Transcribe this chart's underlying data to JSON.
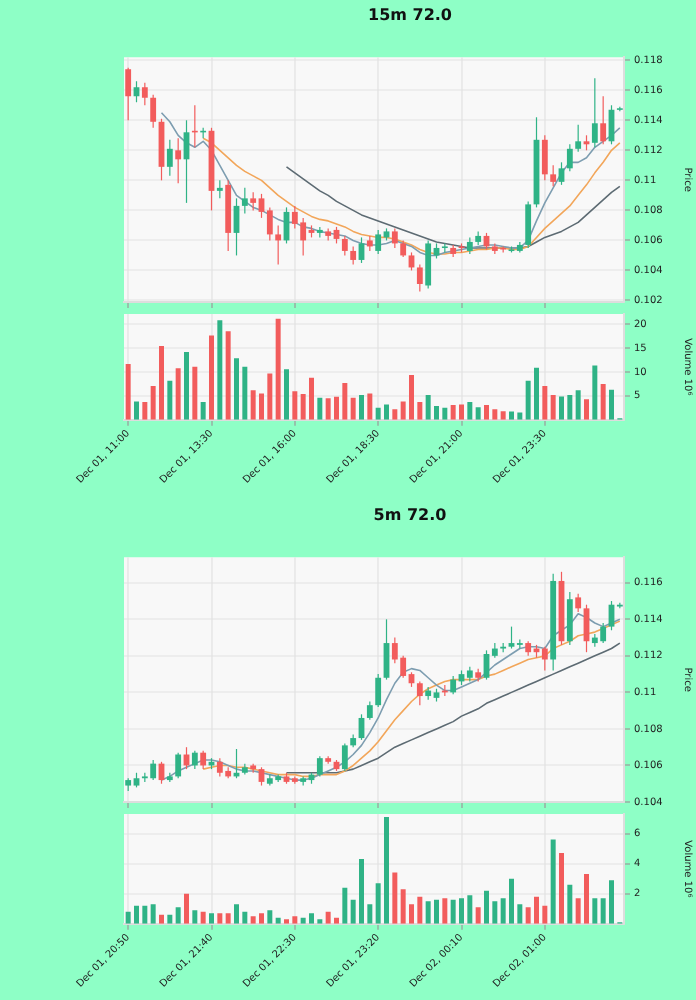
{
  "chart_data": [
    {
      "type": "candlestick",
      "title": "15m 72.0",
      "ylabel": "Price",
      "grid": true,
      "legend": false,
      "tick_labels": "y",
      "categories": [
        null,
        null,
        null,
        null,
        null,
        null,
        null,
        null,
        null,
        null,
        null,
        null,
        null,
        null,
        null,
        null,
        null,
        null,
        null,
        null,
        null,
        null,
        null,
        null,
        null,
        null,
        null,
        null,
        null,
        null,
        null,
        null,
        null,
        null,
        null,
        null,
        null,
        null,
        null,
        null,
        null,
        null,
        null,
        null,
        null,
        null,
        null,
        null,
        null,
        null,
        null,
        null,
        null,
        null,
        null,
        null,
        null,
        null,
        null,
        null
      ],
      "ylim": [
        0.1019,
        0.1182
      ],
      "yticks": [
        0.102,
        0.104,
        0.106,
        0.108,
        0.11,
        0.112,
        0.114,
        0.116,
        0.118
      ],
      "ohlc": [
        [
          0.1174,
          0.1175,
          0.114,
          0.1156
        ],
        [
          0.1156,
          0.1166,
          0.1152,
          0.1162
        ],
        [
          0.1162,
          0.1165,
          0.115,
          0.1155
        ],
        [
          0.1155,
          0.1157,
          0.1135,
          0.1139
        ],
        [
          0.1139,
          0.1141,
          0.11,
          0.1109
        ],
        [
          0.1109,
          0.1127,
          0.1103,
          0.1121
        ],
        [
          0.112,
          0.1128,
          0.1098,
          0.1114
        ],
        [
          0.1114,
          0.114,
          0.1085,
          0.1132
        ],
        [
          0.1133,
          0.115,
          0.1122,
          0.1132
        ],
        [
          0.1132,
          0.1135,
          0.1128,
          0.1133
        ],
        [
          0.1133,
          0.1135,
          0.108,
          0.1093
        ],
        [
          0.1093,
          0.11,
          0.1088,
          0.1095
        ],
        [
          0.1097,
          0.11,
          0.1053,
          0.1065
        ],
        [
          0.1065,
          0.1088,
          0.105,
          0.1083
        ],
        [
          0.1083,
          0.1095,
          0.1078,
          0.1088
        ],
        [
          0.1088,
          0.1092,
          0.108,
          0.1085
        ],
        [
          0.1088,
          0.1091,
          0.1075,
          0.1079
        ],
        [
          0.108,
          0.1082,
          0.106,
          0.1064
        ],
        [
          0.1064,
          0.107,
          0.1044,
          0.106
        ],
        [
          0.106,
          0.1082,
          0.1058,
          0.1079
        ],
        [
          0.1079,
          0.1083,
          0.1068,
          0.1071
        ],
        [
          0.1072,
          0.1075,
          0.105,
          0.106
        ],
        [
          0.1067,
          0.107,
          0.1062,
          0.1065
        ],
        [
          0.1065,
          0.1069,
          0.1062,
          0.1067
        ],
        [
          0.1066,
          0.1068,
          0.106,
          0.1063
        ],
        [
          0.1067,
          0.1069,
          0.1058,
          0.1061
        ],
        [
          0.1061,
          0.1063,
          0.105,
          0.1053
        ],
        [
          0.1053,
          0.1056,
          0.1044,
          0.1047
        ],
        [
          0.1047,
          0.1062,
          0.1045,
          0.1058
        ],
        [
          0.106,
          0.1063,
          0.1053,
          0.1056
        ],
        [
          0.1053,
          0.1067,
          0.1051,
          0.1064
        ],
        [
          0.1062,
          0.1068,
          0.106,
          0.1066
        ],
        [
          0.1066,
          0.1068,
          0.1055,
          0.1058
        ],
        [
          0.1058,
          0.106,
          0.1049,
          0.105
        ],
        [
          0.105,
          0.1052,
          0.104,
          0.1042
        ],
        [
          0.1042,
          0.1044,
          0.1026,
          0.1031
        ],
        [
          0.103,
          0.106,
          0.1028,
          0.1058
        ],
        [
          0.105,
          0.1058,
          0.1048,
          0.1055
        ],
        [
          0.1055,
          0.1058,
          0.1052,
          0.1056
        ],
        [
          0.1055,
          0.1057,
          0.1049,
          0.1051
        ],
        [
          0.1056,
          0.1058,
          0.1052,
          0.1055
        ],
        [
          0.1053,
          0.1062,
          0.1051,
          0.1059
        ],
        [
          0.1059,
          0.1066,
          0.1057,
          0.1063
        ],
        [
          0.1063,
          0.1065,
          0.1054,
          0.1056
        ],
        [
          0.1056,
          0.1058,
          0.1051,
          0.1053
        ],
        [
          0.1055,
          0.1056,
          0.1052,
          0.1054
        ],
        [
          0.1053,
          0.1056,
          0.1052,
          0.1054
        ],
        [
          0.1053,
          0.1059,
          0.1052,
          0.1057
        ],
        [
          0.1057,
          0.1086,
          0.1055,
          0.1084
        ],
        [
          0.1084,
          0.1142,
          0.1082,
          0.1127
        ],
        [
          0.1127,
          0.113,
          0.11,
          0.1104
        ],
        [
          0.1104,
          0.111,
          0.1096,
          0.1099
        ],
        [
          0.1099,
          0.1112,
          0.1097,
          0.1108
        ],
        [
          0.1108,
          0.1124,
          0.1106,
          0.1121
        ],
        [
          0.1121,
          0.1137,
          0.1119,
          0.1126
        ],
        [
          0.1126,
          0.113,
          0.112,
          0.1124
        ],
        [
          0.1125,
          0.1168,
          0.1122,
          0.1138
        ],
        [
          0.1138,
          0.1156,
          0.1124,
          0.1126
        ],
        [
          0.1126,
          0.115,
          0.1124,
          0.1147
        ],
        [
          0.1147,
          0.1149,
          0.1146,
          0.1148
        ]
      ],
      "colors": [
        "#f25c5c",
        "#2fb386",
        "#f25c5c",
        "#f25c5c",
        "#f25c5c",
        "#2fb386",
        "#f25c5c",
        "#2fb386",
        "#f25c5c",
        "#2fb386",
        "#f25c5c",
        "#2fb386",
        "#f25c5c",
        "#2fb386",
        "#2fb386",
        "#f25c5c",
        "#f25c5c",
        "#f25c5c",
        "#f25c5c",
        "#2fb386",
        "#f25c5c",
        "#f25c5c",
        "#f25c5c",
        "#2fb386",
        "#f25c5c",
        "#f25c5c",
        "#f25c5c",
        "#f25c5c",
        "#2fb386",
        "#f25c5c",
        "#2fb386",
        "#2fb386",
        "#f25c5c",
        "#f25c5c",
        "#f25c5c",
        "#f25c5c",
        "#2fb386",
        "#2fb386",
        "#2fb386",
        "#f25c5c",
        "#f25c5c",
        "#2fb386",
        "#2fb386",
        "#f25c5c",
        "#f25c5c",
        "#f25c5c",
        "#2fb386",
        "#2fb386",
        "#2fb386",
        "#2fb386",
        "#f25c5c",
        "#f25c5c",
        "#2fb386",
        "#2fb386",
        "#2fb386",
        "#f25c5c",
        "#2fb386",
        "#f25c5c",
        "#2fb386",
        "#2fb386"
      ],
      "series": [
        {
          "type": "line",
          "color": "#7d9db0",
          "values": [
            null,
            null,
            null,
            null,
            0.1145,
            0.1139,
            0.113,
            0.1125,
            0.1122,
            0.1126,
            0.112,
            0.111,
            0.11,
            0.109,
            0.1086,
            0.1082,
            0.108,
            0.1077,
            0.1074,
            0.1072,
            0.1072,
            0.1069,
            0.1068,
            0.1066,
            0.1065,
            0.1064,
            0.1063,
            0.106,
            0.1058,
            0.1057,
            0.1057,
            0.1058,
            0.106,
            0.1058,
            0.1056,
            0.1052,
            0.105,
            0.105,
            0.1052,
            0.1053,
            0.1054,
            0.1055,
            0.1056,
            0.1057,
            0.1057,
            0.1056,
            0.1055,
            0.1055,
            0.106,
            0.1073,
            0.1085,
            0.1095,
            0.1105,
            0.1112,
            0.1112,
            0.1115,
            0.1122,
            0.1126,
            0.113,
            0.1135
          ]
        },
        {
          "type": "line",
          "color": "#f2a65a",
          "values": [
            null,
            null,
            null,
            null,
            null,
            null,
            null,
            null,
            null,
            0.1128,
            0.1125,
            0.112,
            0.1115,
            0.111,
            0.1106,
            0.1103,
            0.11,
            0.1095,
            0.109,
            0.1086,
            0.1082,
            0.1079,
            0.1076,
            0.1074,
            0.1073,
            0.1071,
            0.1069,
            0.1066,
            0.1064,
            0.1063,
            0.1062,
            0.1062,
            0.1061,
            0.1059,
            0.1057,
            0.1054,
            0.1052,
            0.1051,
            0.1051,
            0.1052,
            0.1052,
            0.1053,
            0.1054,
            0.1054,
            0.1055,
            0.1055,
            0.1054,
            0.1054,
            0.1056,
            0.1062,
            0.1068,
            0.1073,
            0.1078,
            0.1083,
            0.109,
            0.1097,
            0.1105,
            0.1112,
            0.112,
            0.1125
          ]
        },
        {
          "type": "line",
          "color": "#5d6b73",
          "values": [
            null,
            null,
            null,
            null,
            null,
            null,
            null,
            null,
            null,
            null,
            null,
            null,
            null,
            null,
            null,
            null,
            null,
            null,
            null,
            0.1109,
            0.1105,
            0.1101,
            0.1097,
            0.1093,
            0.109,
            0.1086,
            0.1083,
            0.108,
            0.1077,
            0.1075,
            0.1073,
            0.1071,
            0.1069,
            0.1067,
            0.1065,
            0.1063,
            0.1061,
            0.1059,
            0.1058,
            0.1057,
            0.1056,
            0.1055,
            0.1055,
            0.1055,
            0.1055,
            0.1055,
            0.1055,
            0.1055,
            0.1056,
            0.1059,
            0.1062,
            0.1064,
            0.1066,
            0.1069,
            0.1072,
            0.1077,
            0.1082,
            0.1087,
            0.1092,
            0.1096
          ]
        }
      ]
    },
    {
      "type": "bar",
      "ylabel": "Volume 10⁶",
      "grid": true,
      "legend": false,
      "categories": [
        "Dec 01, 11:00",
        null,
        null,
        null,
        null,
        null,
        null,
        null,
        null,
        null,
        "Dec 01, 13:30",
        null,
        null,
        null,
        null,
        null,
        null,
        null,
        null,
        null,
        "Dec 01, 16:00",
        null,
        null,
        null,
        null,
        null,
        null,
        null,
        null,
        null,
        "Dec 01, 18:30",
        null,
        null,
        null,
        null,
        null,
        null,
        null,
        null,
        null,
        "Dec 01, 21:00",
        null,
        null,
        null,
        null,
        null,
        null,
        null,
        null,
        null,
        "Dec 01, 23:30",
        null,
        null,
        null,
        null,
        null,
        null,
        null,
        null,
        null
      ],
      "ylim": [
        0,
        22.2
      ],
      "yticks": [
        5,
        10,
        15,
        20
      ],
      "values": [
        11.7,
        3.8,
        3.7,
        7.1,
        15.5,
        8.2,
        10.8,
        14.2,
        11.1,
        3.7,
        17.7,
        20.9,
        18.6,
        12.9,
        11.1,
        6.2,
        5.5,
        9.7,
        21.2,
        10.6,
        6.0,
        5.4,
        8.8,
        4.6,
        4.5,
        4.8,
        7.7,
        4.6,
        5.2,
        5.5,
        2.5,
        3.2,
        2.2,
        3.8,
        9.4,
        3.7,
        5.2,
        2.9,
        2.5,
        3.1,
        3.2,
        3.7,
        2.6,
        3.1,
        2.2,
        1.8,
        1.7,
        1.5,
        8.2,
        10.9,
        7.1,
        5.2,
        4.9,
        5.2,
        6.2,
        4.3,
        11.4,
        7.5,
        6.3,
        0.3
      ],
      "colors": [
        "#f25c5c",
        "#2fb386",
        "#f25c5c",
        "#f25c5c",
        "#f25c5c",
        "#2fb386",
        "#f25c5c",
        "#2fb386",
        "#f25c5c",
        "#2fb386",
        "#f25c5c",
        "#2fb386",
        "#f25c5c",
        "#2fb386",
        "#2fb386",
        "#f25c5c",
        "#f25c5c",
        "#f25c5c",
        "#f25c5c",
        "#2fb386",
        "#f25c5c",
        "#f25c5c",
        "#f25c5c",
        "#2fb386",
        "#f25c5c",
        "#f25c5c",
        "#f25c5c",
        "#f25c5c",
        "#2fb386",
        "#f25c5c",
        "#2fb386",
        "#2fb386",
        "#f25c5c",
        "#f25c5c",
        "#f25c5c",
        "#f25c5c",
        "#2fb386",
        "#2fb386",
        "#2fb386",
        "#f25c5c",
        "#f25c5c",
        "#2fb386",
        "#2fb386",
        "#f25c5c",
        "#f25c5c",
        "#f25c5c",
        "#2fb386",
        "#2fb386",
        "#2fb386",
        "#2fb386",
        "#f25c5c",
        "#f25c5c",
        "#2fb386",
        "#2fb386",
        "#2fb386",
        "#f25c5c",
        "#2fb386",
        "#f25c5c",
        "#2fb386",
        "#2fb386"
      ]
    },
    {
      "type": "candlestick",
      "title": "5m 72.0",
      "ylabel": "Price",
      "grid": true,
      "legend": false,
      "tick_labels": "y",
      "categories": [
        null,
        null,
        null,
        null,
        null,
        null,
        null,
        null,
        null,
        null,
        null,
        null,
        null,
        null,
        null,
        null,
        null,
        null,
        null,
        null,
        null,
        null,
        null,
        null,
        null,
        null,
        null,
        null,
        null,
        null,
        null,
        null,
        null,
        null,
        null,
        null,
        null,
        null,
        null,
        null,
        null,
        null,
        null,
        null,
        null,
        null,
        null,
        null,
        null,
        null,
        null,
        null,
        null,
        null,
        null,
        null,
        null,
        null,
        null,
        null
      ],
      "ylim": [
        0.104,
        0.1174
      ],
      "yticks": [
        0.104,
        0.106,
        0.108,
        0.11,
        0.112,
        0.114,
        0.116
      ],
      "ohlc": [
        [
          0.1049,
          0.1053,
          0.1046,
          0.1052
        ],
        [
          0.1049,
          0.1056,
          0.1048,
          0.1053
        ],
        [
          0.1053,
          0.1056,
          0.1051,
          0.1054
        ],
        [
          0.1053,
          0.1063,
          0.1052,
          0.1061
        ],
        [
          0.1061,
          0.1062,
          0.105,
          0.1052
        ],
        [
          0.1052,
          0.1056,
          0.1051,
          0.1054
        ],
        [
          0.1054,
          0.1067,
          0.1053,
          0.1066
        ],
        [
          0.1066,
          0.107,
          0.1058,
          0.106
        ],
        [
          0.106,
          0.1068,
          0.1058,
          0.1067
        ],
        [
          0.1067,
          0.1068,
          0.1058,
          0.106
        ],
        [
          0.106,
          0.1064,
          0.1058,
          0.1062
        ],
        [
          0.1062,
          0.1064,
          0.1054,
          0.1056
        ],
        [
          0.1057,
          0.1059,
          0.1053,
          0.1054
        ],
        [
          0.1054,
          0.1069,
          0.1053,
          0.1056
        ],
        [
          0.1056,
          0.1061,
          0.1055,
          0.1059
        ],
        [
          0.106,
          0.1061,
          0.1056,
          0.1058
        ],
        [
          0.1058,
          0.1059,
          0.1049,
          0.1051
        ],
        [
          0.105,
          0.1055,
          0.1049,
          0.1053
        ],
        [
          0.1052,
          0.1055,
          0.1051,
          0.1054
        ],
        [
          0.1054,
          0.1056,
          0.105,
          0.1051
        ],
        [
          0.1053,
          0.1054,
          0.105,
          0.1051
        ],
        [
          0.1051,
          0.1054,
          0.1049,
          0.1053
        ],
        [
          0.1052,
          0.1056,
          0.105,
          0.1055
        ],
        [
          0.1055,
          0.1065,
          0.1054,
          0.1064
        ],
        [
          0.1064,
          0.1065,
          0.1061,
          0.1062
        ],
        [
          0.1062,
          0.1063,
          0.1057,
          0.1058
        ],
        [
          0.1058,
          0.1072,
          0.1057,
          0.1071
        ],
        [
          0.1071,
          0.1077,
          0.107,
          0.1075
        ],
        [
          0.1075,
          0.1088,
          0.1074,
          0.1086
        ],
        [
          0.1086,
          0.1095,
          0.1085,
          0.1093
        ],
        [
          0.1093,
          0.111,
          0.1092,
          0.1108
        ],
        [
          0.1108,
          0.114,
          0.1107,
          0.1127
        ],
        [
          0.1127,
          0.113,
          0.1116,
          0.1118
        ],
        [
          0.1119,
          0.112,
          0.1108,
          0.1109
        ],
        [
          0.111,
          0.1111,
          0.1103,
          0.1105
        ],
        [
          0.1105,
          0.1106,
          0.1093,
          0.1098
        ],
        [
          0.1098,
          0.1103,
          0.1096,
          0.1101
        ],
        [
          0.1097,
          0.1102,
          0.1095,
          0.11
        ],
        [
          0.1101,
          0.1104,
          0.1098,
          0.11
        ],
        [
          0.11,
          0.1109,
          0.1099,
          0.1107
        ],
        [
          0.1106,
          0.1112,
          0.1104,
          0.111
        ],
        [
          0.1108,
          0.1114,
          0.1106,
          0.1112
        ],
        [
          0.1111,
          0.1113,
          0.1106,
          0.1108
        ],
        [
          0.1108,
          0.1123,
          0.1107,
          0.1121
        ],
        [
          0.112,
          0.1127,
          0.1119,
          0.1124
        ],
        [
          0.1124,
          0.1127,
          0.1122,
          0.1125
        ],
        [
          0.1125,
          0.1136,
          0.1124,
          0.1127
        ],
        [
          0.1126,
          0.1129,
          0.1124,
          0.1127
        ],
        [
          0.1127,
          0.1128,
          0.112,
          0.1122
        ],
        [
          0.1124,
          0.1126,
          0.1119,
          0.1122
        ],
        [
          0.1124,
          0.1125,
          0.1112,
          0.1118
        ],
        [
          0.1118,
          0.1165,
          0.1112,
          0.1161
        ],
        [
          0.1161,
          0.1166,
          0.1126,
          0.1128
        ],
        [
          0.1128,
          0.1155,
          0.1126,
          0.1151
        ],
        [
          0.1152,
          0.1154,
          0.1144,
          0.1146
        ],
        [
          0.1146,
          0.1148,
          0.1122,
          0.1128
        ],
        [
          0.1127,
          0.1132,
          0.1125,
          0.113
        ],
        [
          0.1128,
          0.1138,
          0.1127,
          0.1136
        ],
        [
          0.1136,
          0.115,
          0.1134,
          0.1148
        ],
        [
          0.1147,
          0.1149,
          0.1146,
          0.1148
        ]
      ],
      "colors": [
        "#2fb386",
        "#2fb386",
        "#2fb386",
        "#2fb386",
        "#f25c5c",
        "#2fb386",
        "#2fb386",
        "#f25c5c",
        "#2fb386",
        "#f25c5c",
        "#2fb386",
        "#f25c5c",
        "#f25c5c",
        "#2fb386",
        "#2fb386",
        "#f25c5c",
        "#f25c5c",
        "#2fb386",
        "#2fb386",
        "#f25c5c",
        "#f25c5c",
        "#2fb386",
        "#2fb386",
        "#2fb386",
        "#f25c5c",
        "#f25c5c",
        "#2fb386",
        "#2fb386",
        "#2fb386",
        "#2fb386",
        "#2fb386",
        "#2fb386",
        "#f25c5c",
        "#f25c5c",
        "#f25c5c",
        "#f25c5c",
        "#2fb386",
        "#2fb386",
        "#f25c5c",
        "#2fb386",
        "#2fb386",
        "#2fb386",
        "#f25c5c",
        "#2fb386",
        "#2fb386",
        "#2fb386",
        "#2fb386",
        "#2fb386",
        "#f25c5c",
        "#f25c5c",
        "#f25c5c",
        "#2fb386",
        "#f25c5c",
        "#2fb386",
        "#f25c5c",
        "#f25c5c",
        "#2fb386",
        "#2fb386",
        "#2fb386",
        "#2fb386"
      ],
      "series": [
        {
          "type": "line",
          "color": "#7d9db0",
          "values": [
            null,
            null,
            null,
            null,
            0.1052,
            0.1054,
            0.1057,
            0.1059,
            0.1061,
            0.1063,
            0.1063,
            0.1062,
            0.106,
            0.1058,
            0.1057,
            0.1057,
            0.1056,
            0.1055,
            0.1054,
            0.1053,
            0.1052,
            0.1052,
            0.1053,
            0.1055,
            0.1057,
            0.1059,
            0.1062,
            0.1066,
            0.1071,
            0.1078,
            0.1086,
            0.1096,
            0.1105,
            0.1111,
            0.1113,
            0.1112,
            0.1108,
            0.1104,
            0.1101,
            0.1101,
            0.1103,
            0.1105,
            0.1107,
            0.1111,
            0.1115,
            0.1118,
            0.1121,
            0.1124,
            0.1125,
            0.1125,
            0.1124,
            0.1131,
            0.1134,
            0.1137,
            0.1143,
            0.1141,
            0.1138,
            0.1136,
            0.1138,
            0.114
          ]
        },
        {
          "type": "line",
          "color": "#f2a65a",
          "values": [
            null,
            null,
            null,
            null,
            null,
            null,
            null,
            null,
            null,
            0.1058,
            0.1059,
            0.106,
            0.106,
            0.1059,
            0.1059,
            0.1058,
            0.1057,
            0.1056,
            0.1055,
            0.1055,
            0.1055,
            0.1054,
            0.1054,
            0.1055,
            0.1055,
            0.1055,
            0.1057,
            0.106,
            0.1064,
            0.1068,
            0.1073,
            0.1079,
            0.1085,
            0.109,
            0.1095,
            0.1099,
            0.1102,
            0.1104,
            0.1106,
            0.1107,
            0.1107,
            0.1107,
            0.1107,
            0.1109,
            0.111,
            0.1112,
            0.1114,
            0.1116,
            0.1118,
            0.1119,
            0.112,
            0.1124,
            0.1126,
            0.1128,
            0.1131,
            0.1132,
            0.1133,
            0.1135,
            0.1137,
            0.1139
          ]
        },
        {
          "type": "line",
          "color": "#5d6b73",
          "values": [
            null,
            null,
            null,
            null,
            null,
            null,
            null,
            null,
            null,
            null,
            null,
            null,
            null,
            null,
            null,
            null,
            null,
            null,
            null,
            0.1056,
            0.1056,
            0.1056,
            0.1056,
            0.1056,
            0.1056,
            0.1056,
            0.1057,
            0.1058,
            0.106,
            0.1062,
            0.1064,
            0.1067,
            0.107,
            0.1072,
            0.1074,
            0.1076,
            0.1078,
            0.108,
            0.1082,
            0.1084,
            0.1087,
            0.1089,
            0.1091,
            0.1094,
            0.1096,
            0.1098,
            0.11,
            0.1102,
            0.1104,
            0.1106,
            0.1108,
            0.111,
            0.1112,
            0.1114,
            0.1116,
            0.1118,
            0.112,
            0.1122,
            0.1124,
            0.1127
          ]
        }
      ]
    },
    {
      "type": "bar",
      "ylabel": "Volume 10⁶",
      "grid": true,
      "legend": false,
      "categories": [
        "Dec 01, 20:50",
        null,
        null,
        null,
        null,
        null,
        null,
        null,
        null,
        null,
        "Dec 01, 21:40",
        null,
        null,
        null,
        null,
        null,
        null,
        null,
        null,
        null,
        "Dec 01, 22:30",
        null,
        null,
        null,
        null,
        null,
        null,
        null,
        null,
        null,
        "Dec 01, 23:20",
        null,
        null,
        null,
        null,
        null,
        null,
        null,
        null,
        null,
        "Dec 02, 00:10",
        null,
        null,
        null,
        null,
        null,
        null,
        null,
        null,
        null,
        "Dec 02, 01:00",
        null,
        null,
        null,
        null,
        null,
        null,
        null,
        null,
        null
      ],
      "ylim": [
        0,
        7.3
      ],
      "yticks": [
        2,
        4,
        6
      ],
      "values": [
        0.8,
        1.2,
        1.2,
        1.3,
        0.6,
        0.6,
        1.1,
        2.0,
        0.9,
        0.8,
        0.7,
        0.7,
        0.7,
        1.3,
        0.8,
        0.5,
        0.7,
        0.9,
        0.4,
        0.3,
        0.5,
        0.4,
        0.7,
        0.3,
        0.8,
        0.4,
        2.4,
        1.6,
        4.3,
        1.3,
        2.7,
        7.1,
        3.4,
        2.3,
        1.3,
        1.8,
        1.5,
        1.6,
        1.7,
        1.6,
        1.7,
        1.9,
        1.1,
        2.2,
        1.5,
        1.7,
        3.0,
        1.3,
        1.1,
        1.8,
        1.2,
        5.6,
        4.7,
        2.6,
        1.7,
        3.3,
        1.7,
        1.7,
        2.9,
        0.1
      ],
      "colors": [
        "#2fb386",
        "#2fb386",
        "#2fb386",
        "#2fb386",
        "#f25c5c",
        "#2fb386",
        "#2fb386",
        "#f25c5c",
        "#2fb386",
        "#f25c5c",
        "#2fb386",
        "#f25c5c",
        "#f25c5c",
        "#2fb386",
        "#2fb386",
        "#f25c5c",
        "#f25c5c",
        "#2fb386",
        "#2fb386",
        "#f25c5c",
        "#f25c5c",
        "#2fb386",
        "#2fb386",
        "#2fb386",
        "#f25c5c",
        "#f25c5c",
        "#2fb386",
        "#2fb386",
        "#2fb386",
        "#2fb386",
        "#2fb386",
        "#2fb386",
        "#f25c5c",
        "#f25c5c",
        "#f25c5c",
        "#f25c5c",
        "#2fb386",
        "#2fb386",
        "#f25c5c",
        "#2fb386",
        "#2fb386",
        "#2fb386",
        "#f25c5c",
        "#2fb386",
        "#2fb386",
        "#2fb386",
        "#2fb386",
        "#2fb386",
        "#f25c5c",
        "#f25c5c",
        "#f25c5c",
        "#2fb386",
        "#f25c5c",
        "#2fb386",
        "#f25c5c",
        "#f25c5c",
        "#2fb386",
        "#2fb386",
        "#2fb386",
        "#2fb386"
      ]
    }
  ]
}
